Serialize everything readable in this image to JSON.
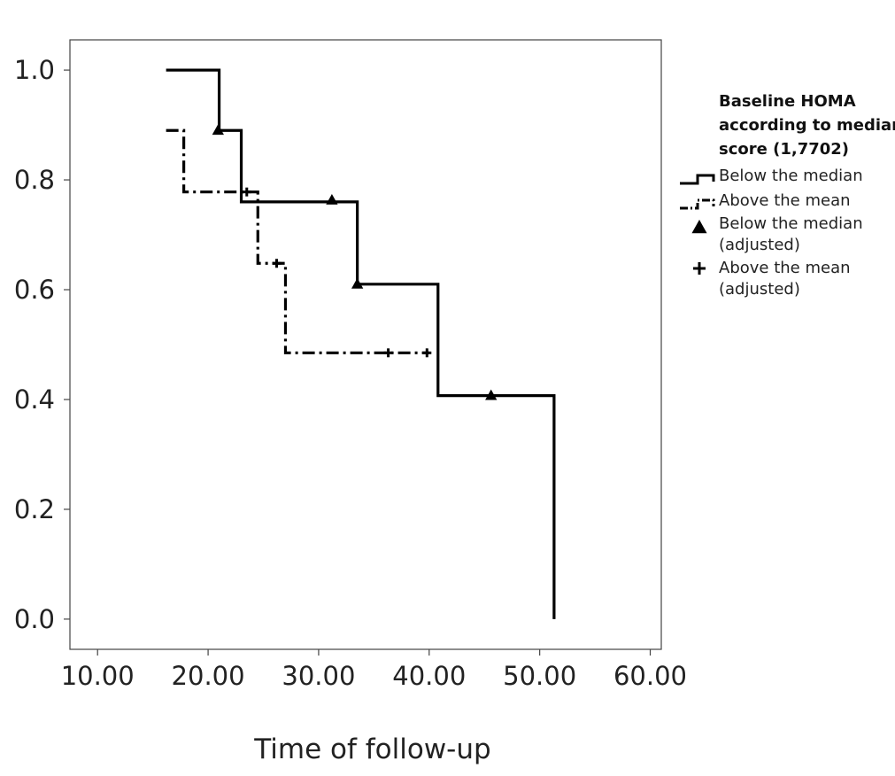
{
  "chart_data": {
    "type": "line",
    "subtype": "kaplan-meier step",
    "xlabel": "Time of follow-up",
    "ylabel": "",
    "xlim": [
      7.5,
      61.0
    ],
    "ylim": [
      -0.055,
      1.055
    ],
    "x_ticks": [
      10,
      20,
      30,
      40,
      50,
      60
    ],
    "x_tick_labels": [
      "10.00",
      "20.00",
      "30.00",
      "40.00",
      "50.00",
      "60.00"
    ],
    "y_ticks": [
      0,
      0.2,
      0.4,
      0.6,
      0.8,
      1.0
    ],
    "y_tick_labels": [
      "0.0",
      "0.2",
      "0.4",
      "0.6",
      "0.8",
      "1.0"
    ],
    "grid": false,
    "legend": {
      "placement": "right",
      "title_lines": [
        "Baseline HOMA",
        "according to median",
        "score (1,7702)"
      ],
      "entries": [
        {
          "label_lines": [
            "Below the median"
          ],
          "symbol": "solid-step"
        },
        {
          "label_lines": [
            "Above the mean"
          ],
          "symbol": "dashdot-step"
        },
        {
          "label_lines": [
            "Below the median",
            "(adjusted)"
          ],
          "symbol": "triangle"
        },
        {
          "label_lines": [
            "Above the mean",
            "(adjusted)"
          ],
          "symbol": "plus"
        }
      ]
    },
    "series": [
      {
        "style": "solid",
        "color": "#000000",
        "steps": [
          {
            "x": 16.2,
            "y": 1.0
          },
          {
            "x": 21.0,
            "y": 0.89
          },
          {
            "x": 23.0,
            "y": 0.76
          },
          {
            "x": 33.5,
            "y": 0.61
          },
          {
            "x": 40.8,
            "y": 0.407
          },
          {
            "x": 51.3,
            "y": 0.0
          }
        ],
        "end_x": 51.3,
        "censored_marker": "triangle",
        "censored": [
          {
            "x": 20.9,
            "y": 0.89
          },
          {
            "x": 31.2,
            "y": 0.763
          },
          {
            "x": 33.5,
            "y": 0.61
          },
          {
            "x": 45.6,
            "y": 0.407
          }
        ]
      },
      {
        "style": "dashdot",
        "color": "#000000",
        "steps": [
          {
            "x": 16.2,
            "y": 0.89
          },
          {
            "x": 17.8,
            "y": 0.778
          },
          {
            "x": 24.5,
            "y": 0.648
          },
          {
            "x": 27.0,
            "y": 0.485
          }
        ],
        "end_x": 40.0,
        "censored_marker": "plus",
        "censored": [
          {
            "x": 23.5,
            "y": 0.778
          },
          {
            "x": 26.2,
            "y": 0.648
          },
          {
            "x": 36.3,
            "y": 0.485
          },
          {
            "x": 39.8,
            "y": 0.485
          }
        ]
      }
    ]
  }
}
